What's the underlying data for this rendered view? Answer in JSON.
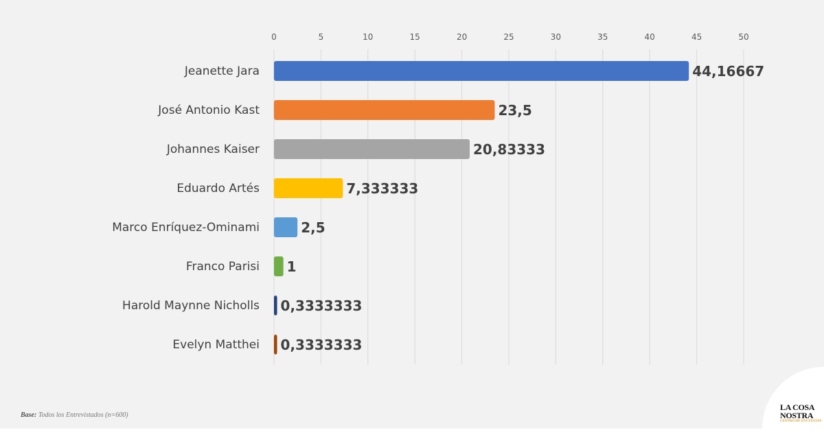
{
  "chart_data": {
    "type": "bar",
    "orientation": "horizontal",
    "categories": [
      "Jeanette Jara",
      "José Antonio Kast",
      "Johannes Kaiser",
      "Eduardo Artés",
      "Marco Enríquez-Ominami",
      "Franco Parisi",
      "Harold Maynne Nicholls",
      "Evelyn Matthei"
    ],
    "values": [
      44.16667,
      23.5,
      20.83333,
      7.333333,
      2.5,
      1,
      0.3333333,
      0.3333333
    ],
    "data_labels": [
      "44,16667",
      "23,5",
      "20,83333",
      "7,333333",
      "2,5",
      "1",
      "0,3333333",
      "0,3333333"
    ],
    "colors": [
      "#4472c4",
      "#ed7d31",
      "#a5a5a5",
      "#ffc000",
      "#5b9bd5",
      "#70ad47",
      "#264478",
      "#9e480e"
    ],
    "xlim": [
      0,
      50
    ],
    "xticks": [
      "0",
      "5",
      "10",
      "15",
      "20",
      "25",
      "30",
      "35",
      "40",
      "45",
      "50"
    ],
    "xaxis_position": "top",
    "grid": true,
    "title": "",
    "xlabel": "",
    "ylabel": ""
  },
  "footer": {
    "base_label": "Base:",
    "base_text": "Todos los Entrevistados (n=600)"
  },
  "logo": {
    "line1": "LA COSA",
    "line2": "NOSTRA",
    "tagline": "CENTRO DE ENCUESTAS"
  }
}
